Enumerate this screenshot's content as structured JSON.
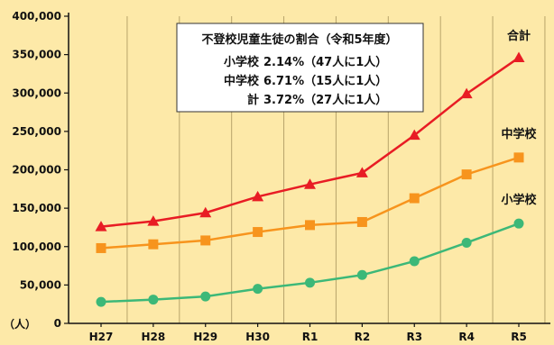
{
  "chart_data": {
    "type": "line",
    "categories": [
      "H27",
      "H28",
      "H29",
      "H30",
      "R1",
      "R2",
      "R3",
      "R4",
      "R5"
    ],
    "yticks": [
      "0",
      "50,000",
      "100,000",
      "150,000",
      "200,000",
      "250,000",
      "300,000",
      "350,000",
      "400,000"
    ],
    "ytick_values": [
      0,
      50000,
      100000,
      150000,
      200000,
      250000,
      300000,
      350000,
      400000
    ],
    "ylim": [
      0,
      400000
    ],
    "yunit": "（人）",
    "grid": "vertical",
    "series": [
      {
        "name": "合計",
        "color": "#e81c24",
        "marker": "triangle",
        "values": [
          126000,
          133000,
          144000,
          165000,
          181000,
          196000,
          245000,
          299000,
          346000
        ]
      },
      {
        "name": "中学校",
        "color": "#f7941d",
        "marker": "square",
        "values": [
          98000,
          103000,
          108000,
          119000,
          128000,
          132000,
          163000,
          194000,
          216000
        ]
      },
      {
        "name": "小学校",
        "color": "#3cb878",
        "marker": "circle",
        "values": [
          28000,
          31000,
          35000,
          45000,
          53000,
          63000,
          81000,
          105000,
          130000
        ]
      }
    ],
    "annotation": {
      "title": "不登校児童生徒の割合（令和5年度）",
      "lines": [
        {
          "label": "小学校",
          "value": "2.14%（47人に1人）"
        },
        {
          "label": "中学校",
          "value": "6.71%（15人に1人）"
        },
        {
          "label": "計",
          "value": "3.72%（27人に1人）"
        }
      ]
    }
  }
}
